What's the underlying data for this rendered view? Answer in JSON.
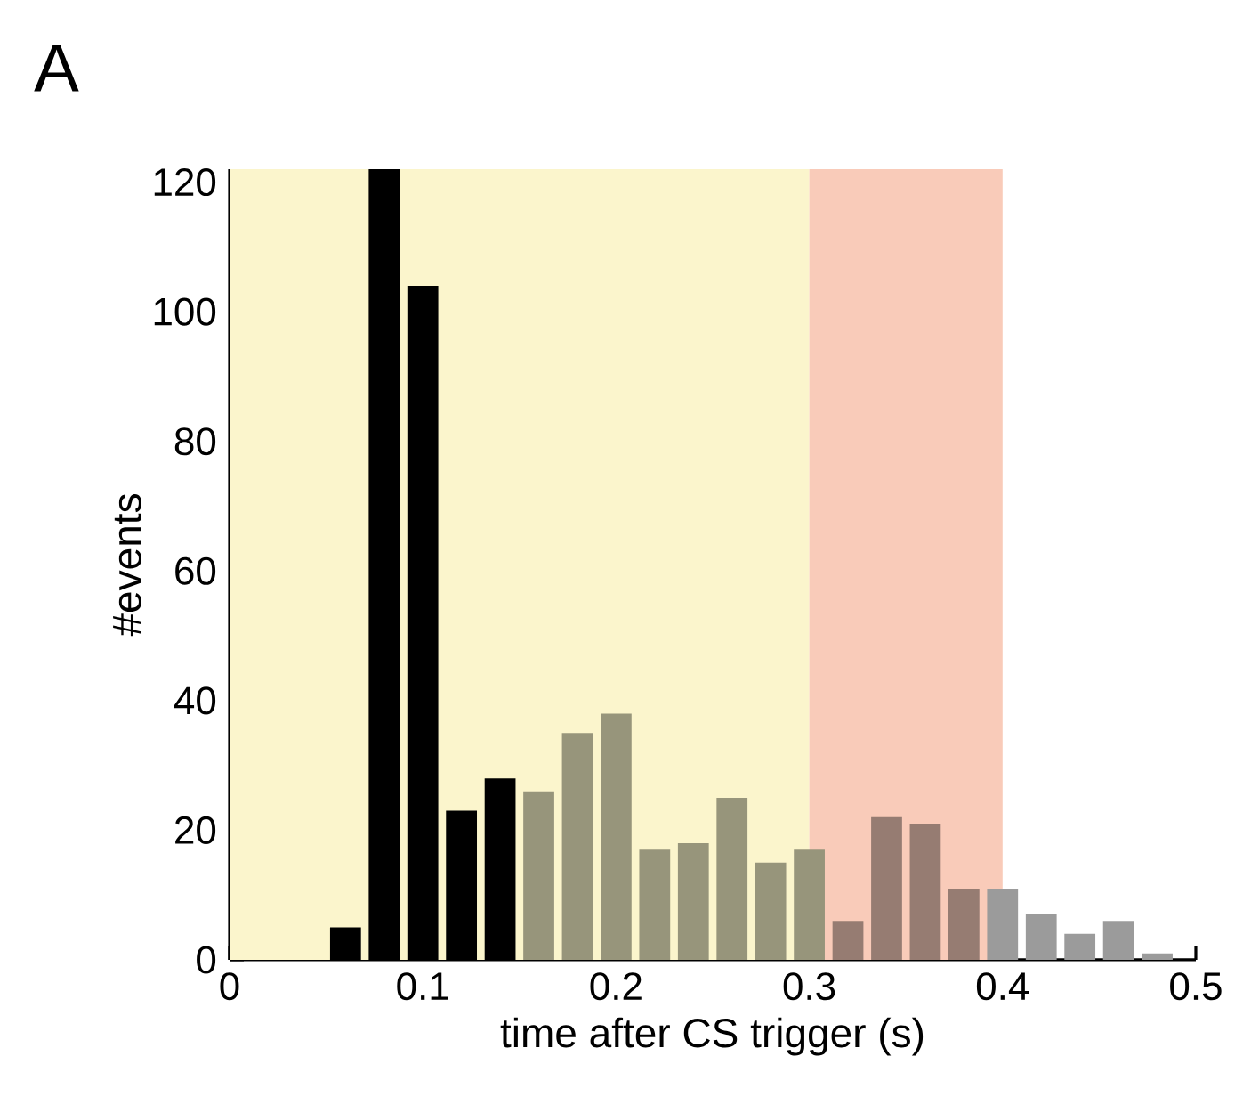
{
  "chart_data": {
    "type": "histogram",
    "annotations": [
      "A"
    ],
    "xlabel": "time after CS trigger (s)",
    "ylabel": "#events",
    "bins": [
      0.05,
      0.07,
      0.09,
      0.11,
      0.13,
      0.15,
      0.17,
      0.19,
      0.21,
      0.23,
      0.25,
      0.27,
      0.29,
      0.31,
      0.33,
      0.35,
      0.37,
      0.39,
      0.41,
      0.43,
      0.45,
      0.47,
      0.49
    ],
    "values": [
      5,
      122,
      104,
      23,
      28,
      26,
      35,
      38,
      17,
      18,
      25,
      15,
      17,
      6,
      22,
      21,
      11,
      11,
      7,
      4,
      6,
      1
    ],
    "colors": [
      "#000000",
      "#000000",
      "#000000",
      "#000000",
      "#000000",
      "#97957b",
      "#97957b",
      "#97957b",
      "#97957b",
      "#97957b",
      "#97957b",
      "#97957b",
      "#97957b",
      "#967c72",
      "#967c72",
      "#967c72",
      "#967c72",
      "#9b9b9b",
      "#9b9b9b",
      "#9b9b9b",
      "#9b9b9b",
      "#9b9b9b"
    ],
    "bands": [
      {
        "axis": "x",
        "from": 0,
        "to": 0.3,
        "color": "#fbf5cc"
      },
      {
        "axis": "x",
        "from": 0.3,
        "to": 0.4,
        "color": "#f9cbb9"
      }
    ],
    "xlim": [
      0,
      0.5
    ],
    "ylim": [
      0,
      122
    ],
    "xticks": [
      0,
      0.1,
      0.2,
      0.3,
      0.4,
      0.5
    ],
    "yticks": [
      0,
      20,
      40,
      60,
      80,
      100,
      120
    ],
    "grid": false
  }
}
